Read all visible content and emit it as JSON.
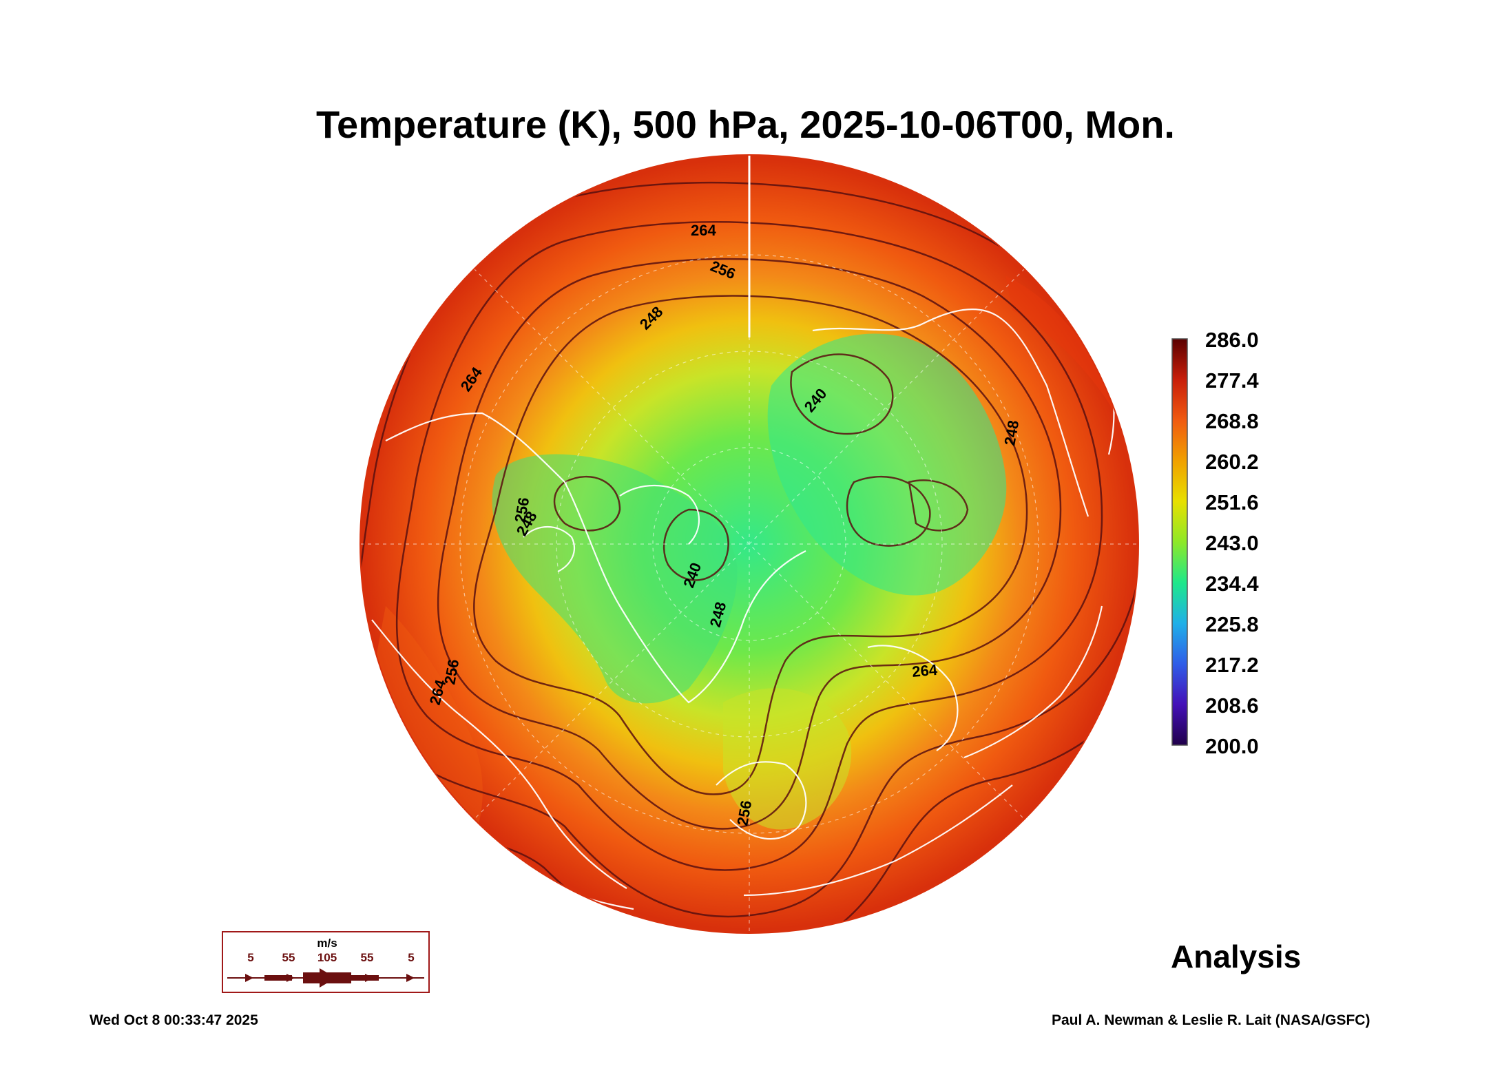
{
  "title": "Temperature (K), 500 hPa, 2025-10-06T00, Mon.",
  "colorbar": {
    "labels": [
      "286.0",
      "277.4",
      "268.8",
      "260.2",
      "251.6",
      "243.0",
      "234.4",
      "225.8",
      "217.2",
      "208.6",
      "200.0"
    ],
    "range": [
      200.0,
      286.0
    ],
    "colors": [
      "#20004a",
      "#3a0aa8",
      "#2f5de8",
      "#1fb0e8",
      "#1ee88a",
      "#8ee828",
      "#e8e000",
      "#f0a000",
      "#f05a10",
      "#c81e0a",
      "#5a0000"
    ]
  },
  "contour_labels": [
    "264",
    "256",
    "248",
    "240",
    "248",
    "264",
    "256",
    "264",
    "264",
    "248",
    "240",
    "248",
    "256",
    "256"
  ],
  "vector_legend": {
    "unit": "m/s",
    "values": [
      "5",
      "55",
      "105",
      "55",
      "5"
    ]
  },
  "analysis_label": "Analysis",
  "footer": {
    "timestamp": "Wed Oct  8 00:33:47 2025",
    "credit": "Paul A. Newman & Leslie R. Lait (NASA/GSFC)"
  }
}
